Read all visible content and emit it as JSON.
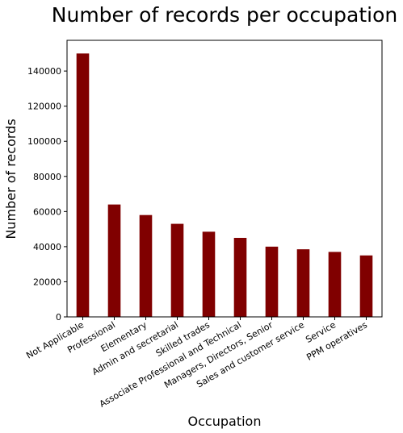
{
  "chart_data": {
    "type": "bar",
    "title": "Number of records per occupation",
    "xlabel": "Occupation",
    "ylabel": "Number of records",
    "categories": [
      "Not Applicable",
      "Professional",
      "Elementary",
      "Admin and secretarial",
      "Skilled trades",
      "Associate Professional and Technical",
      "Managers, Directors, Senior",
      "Sales and customer service",
      "Service",
      "PPM operatives"
    ],
    "values": [
      150000,
      64000,
      58000,
      53000,
      48500,
      45000,
      40000,
      38500,
      37000,
      35000
    ],
    "ylim": [
      0,
      157500
    ],
    "yticks": [
      0,
      20000,
      40000,
      60000,
      80000,
      100000,
      120000,
      140000
    ],
    "bar_color": "#800000",
    "grid": false,
    "legend": "none"
  }
}
